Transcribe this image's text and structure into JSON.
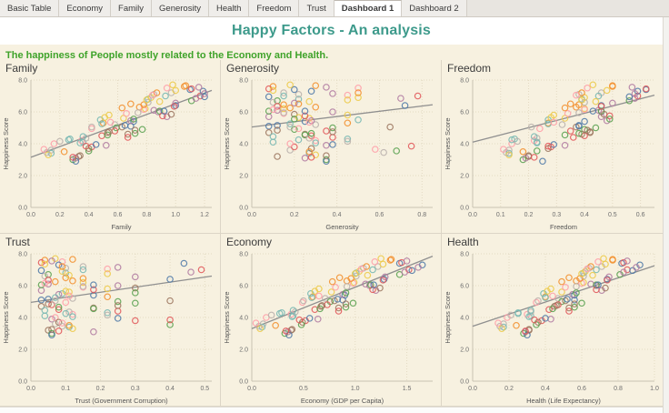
{
  "window": {
    "tabs": [
      {
        "label": "Basic Table",
        "active": false
      },
      {
        "label": "Economy",
        "active": false
      },
      {
        "label": "Family",
        "active": false
      },
      {
        "label": "Generosity",
        "active": false
      },
      {
        "label": "Health",
        "active": false
      },
      {
        "label": "Freedom",
        "active": false
      },
      {
        "label": "Trust",
        "active": false
      },
      {
        "label": "Dashboard 1",
        "active": true
      },
      {
        "label": "Dashboard 2",
        "active": false
      }
    ]
  },
  "header": {
    "title": "Happy Factors -  An analysis",
    "subtitle": "The happiness of People mostly related to the Economy and Health."
  },
  "colors": {
    "title": "#3d9a8b",
    "subtitle": "#3fa32a",
    "background": "#f7f1e0",
    "grid_line": "#e3dac2",
    "axis_line": "#c8c2b2",
    "tick_text": "#6e6e6e",
    "axis_label_text": "#555555",
    "trend_line": "#8f8f8f",
    "palette": [
      "#4e79a7",
      "#f28e2b",
      "#e15759",
      "#76b7b2",
      "#59a14f",
      "#edc948",
      "#b07aa1",
      "#ff9da7",
      "#9c755f",
      "#bab0ac"
    ]
  },
  "chart_data": {
    "type": "scatter",
    "ylabel": "Happiness Score",
    "ylim": [
      0,
      8
    ],
    "yticks": [
      0,
      2,
      4,
      6,
      8
    ],
    "grid": true,
    "marker": "open-circle",
    "fields": [
      "happiness_score",
      "family",
      "generosity",
      "freedom",
      "trust",
      "economy",
      "health",
      "color_index"
    ],
    "points": [
      [
        5.1,
        0.69,
        0.08,
        0.38,
        0.03,
        0.88,
        0.56,
        0
      ],
      [
        6.8,
        0.81,
        0.22,
        0.39,
        0.1,
        1.01,
        0.61,
        3
      ],
      [
        3.9,
        0.52,
        0.35,
        0.33,
        0.06,
        0.64,
        0.43,
        6
      ],
      [
        7.2,
        0.97,
        0.15,
        0.46,
        0.15,
        1.22,
        0.71,
        9
      ],
      [
        4.5,
        0.49,
        0.28,
        0.4,
        0.08,
        0.61,
        0.42,
        2
      ],
      [
        5.8,
        0.54,
        0.45,
        0.29,
        0.22,
        0.65,
        0.43,
        5
      ],
      [
        3.2,
        0.33,
        0.12,
        0.2,
        0.05,
        0.38,
        0.31,
        8
      ],
      [
        6.3,
        0.75,
        0.3,
        0.37,
        0.12,
        0.92,
        0.57,
        1
      ],
      [
        4.9,
        0.77,
        0.2,
        0.4,
        0.3,
        0.98,
        0.6,
        4
      ],
      [
        7.5,
        0.94,
        0.5,
        0.41,
        0.09,
        1.19,
        0.69,
        7
      ],
      [
        5.4,
        0.71,
        0.25,
        0.4,
        0.18,
        0.9,
        0.56,
        0
      ],
      [
        4.1,
        0.36,
        0.1,
        0.23,
        0.04,
        0.4,
        0.32,
        3
      ],
      [
        6.0,
        0.88,
        0.38,
        0.46,
        0.25,
        1.14,
        0.68,
        6
      ],
      [
        3.6,
        0.14,
        0.18,
        0.13,
        0.07,
        0.11,
        0.17,
        9
      ],
      [
        7.0,
        1.17,
        0.78,
        0.59,
        0.49,
        1.52,
        0.85,
        2
      ],
      [
        5.6,
        0.64,
        0.27,
        0.33,
        0.11,
        0.77,
        0.49,
        5
      ],
      [
        4.7,
        0.53,
        0.08,
        0.42,
        0.03,
        0.67,
        0.45,
        8
      ],
      [
        6.5,
        0.69,
        0.22,
        0.35,
        0.1,
        0.85,
        0.53,
        1
      ],
      [
        3.0,
        0.29,
        0.35,
        0.18,
        0.06,
        0.32,
        0.28,
        4
      ],
      [
        5.9,
        0.66,
        0.15,
        0.34,
        0.15,
        0.81,
        0.51,
        7
      ],
      [
        7.3,
        1.19,
        0.28,
        0.59,
        0.08,
        1.65,
        0.92,
        0
      ],
      [
        4.3,
        0.27,
        0.45,
        0.15,
        0.22,
        0.29,
        0.25,
        3
      ],
      [
        6.1,
        0.85,
        0.12,
        0.45,
        0.05,
        1.1,
        0.65,
        6
      ],
      [
        5.2,
        0.58,
        0.3,
        0.32,
        0.12,
        0.71,
        0.47,
        9
      ],
      [
        3.8,
        0.42,
        0.2,
        0.28,
        0.3,
        0.52,
        0.38,
        2
      ],
      [
        6.9,
        0.83,
        0.5,
        0.4,
        0.09,
        1.04,
        0.62,
        5
      ],
      [
        4.6,
        0.67,
        0.25,
        0.39,
        0.18,
        0.84,
        0.53,
        8
      ],
      [
        7.6,
        1.06,
        0.1,
        0.5,
        0.04,
        1.34,
        0.77,
        1
      ],
      [
        5.0,
        0.59,
        0.38,
        0.44,
        0.25,
        0.76,
        0.49,
        4
      ],
      [
        4.0,
        0.16,
        0.18,
        0.14,
        0.07,
        0.14,
        0.19,
        7
      ],
      [
        6.4,
        1.0,
        0.72,
        0.46,
        0.4,
        1.28,
        0.74,
        0
      ],
      [
        3.4,
        0.14,
        0.27,
        0.13,
        0.11,
        0.1,
        0.17,
        3
      ],
      [
        5.7,
        0.94,
        0.08,
        0.46,
        0.03,
        1.2,
        0.71,
        6
      ],
      [
        7.1,
        0.85,
        0.22,
        0.38,
        0.1,
        1.08,
        0.64,
        9
      ],
      [
        4.8,
        0.58,
        0.35,
        0.35,
        0.06,
        0.73,
        0.47,
        2
      ],
      [
        6.2,
        0.79,
        0.15,
        0.4,
        0.15,
        0.99,
        0.61,
        5
      ],
      [
        3.7,
        0.4,
        0.28,
        0.27,
        0.08,
        0.49,
        0.36,
        8
      ],
      [
        5.3,
        0.5,
        0.45,
        0.27,
        0.22,
        0.59,
        0.4,
        1
      ],
      [
        6.7,
        1.11,
        0.12,
        0.56,
        0.05,
        1.43,
        0.81,
        4
      ],
      [
        4.2,
        0.35,
        0.3,
        0.22,
        0.12,
        0.38,
        0.3,
        7
      ],
      [
        7.4,
        1.1,
        0.2,
        0.62,
        0.44,
        1.43,
        0.82,
        0
      ],
      [
        5.5,
        0.48,
        0.5,
        0.27,
        0.09,
        0.57,
        0.39,
        3
      ],
      [
        3.1,
        0.31,
        0.25,
        0.19,
        0.18,
        0.35,
        0.29,
        6
      ],
      [
        6.6,
        0.81,
        0.1,
        0.4,
        0.04,
        1.01,
        0.61,
        9
      ],
      [
        4.4,
        0.67,
        0.38,
        0.36,
        0.25,
        0.84,
        0.53,
        2
      ],
      [
        7.7,
        0.98,
        0.18,
        0.43,
        0.07,
        1.25,
        0.72,
        5
      ],
      [
        5.05,
        0.63,
        0.65,
        0.37,
        0.4,
        0.8,
        0.51,
        8
      ],
      [
        3.5,
        0.23,
        0.27,
        0.18,
        0.11,
        0.23,
        0.24,
        1
      ],
      [
        6.05,
        0.89,
        0.08,
        0.46,
        0.03,
        1.15,
        0.68,
        4
      ],
      [
        4.95,
        0.42,
        0.22,
        0.24,
        0.1,
        0.49,
        0.35,
        7
      ],
      [
        2.9,
        0.31,
        0.35,
        0.25,
        0.06,
        0.36,
        0.3,
        0
      ],
      [
        7.0,
        0.93,
        0.15,
        0.45,
        0.15,
        1.17,
        0.68,
        3
      ],
      [
        5.45,
        0.69,
        0.28,
        0.48,
        0.08,
        0.88,
        0.55,
        6
      ],
      [
        4.15,
        0.2,
        0.45,
        0.16,
        0.22,
        0.19,
        0.21,
        9
      ],
      [
        6.35,
        0.99,
        0.12,
        0.46,
        0.05,
        1.27,
        0.74,
        2
      ],
      [
        3.3,
        0.12,
        0.3,
        0.13,
        0.12,
        0.08,
        0.16,
        5
      ],
      [
        5.85,
        0.97,
        0.2,
        0.47,
        0.3,
        1.24,
        0.73,
        8
      ],
      [
        7.2,
        0.87,
        0.5,
        0.39,
        0.09,
        1.11,
        0.65,
        1
      ],
      [
        4.55,
        0.53,
        0.25,
        0.33,
        0.18,
        0.66,
        0.44,
        4
      ],
      [
        6.15,
        0.78,
        0.1,
        0.4,
        0.04,
        0.98,
        0.6,
        7
      ],
      [
        3.95,
        0.45,
        0.38,
        0.29,
        0.25,
        0.56,
        0.4,
        0
      ],
      [
        5.25,
        0.49,
        0.18,
        0.27,
        0.07,
        0.58,
        0.4,
        3
      ],
      [
        6.85,
        1.14,
        0.7,
        0.58,
        0.46,
        1.48,
        0.83,
        6
      ],
      [
        4.35,
        0.38,
        0.27,
        0.23,
        0.11,
        0.42,
        0.32,
        9
      ],
      [
        7.45,
        1.11,
        0.08,
        0.62,
        0.03,
        1.45,
        0.83,
        2
      ],
      [
        5.65,
        0.51,
        0.22,
        0.28,
        0.1,
        0.61,
        0.41,
        5
      ],
      [
        3.25,
        0.34,
        0.35,
        0.2,
        0.06,
        0.39,
        0.31,
        8
      ],
      [
        6.45,
        0.78,
        0.15,
        0.38,
        0.15,
        0.96,
        0.59,
        1
      ],
      [
        4.65,
        0.72,
        0.28,
        0.38,
        0.08,
        0.91,
        0.56,
        4
      ],
      [
        7.05,
        0.84,
        0.45,
        0.37,
        0.22,
        1.06,
        0.63,
        7
      ],
      [
        5.15,
        0.65,
        0.12,
        0.38,
        0.05,
        0.83,
        0.52,
        0
      ],
      [
        4.05,
        0.34,
        0.3,
        0.23,
        0.12,
        0.39,
        0.31,
        3
      ],
      [
        6.55,
        1.0,
        0.2,
        0.5,
        0.3,
        1.29,
        0.75,
        6
      ],
      [
        3.45,
        0.11,
        0.62,
        0.12,
        0.09,
        0.07,
        0.15,
        9
      ],
      [
        5.75,
        0.91,
        0.25,
        0.49,
        0.18,
        1.17,
        0.68,
        2
      ],
      [
        7.35,
        1.0,
        0.1,
        0.48,
        0.04,
        1.27,
        0.73,
        5
      ],
      [
        4.75,
        0.54,
        0.38,
        0.42,
        0.25,
        0.68,
        0.46,
        8
      ],
      [
        6.25,
        0.63,
        0.18,
        0.33,
        0.07,
        0.78,
        0.49,
        1
      ],
      [
        3.55,
        0.4,
        0.68,
        0.23,
        0.4,
        0.48,
        0.35,
        4
      ],
      [
        5.35,
        0.55,
        0.27,
        0.29,
        0.11,
        0.65,
        0.44,
        7
      ],
      [
        6.95,
        1.2,
        0.08,
        0.56,
        0.03,
        1.55,
        0.88,
        0
      ],
      [
        4.25,
        0.26,
        0.22,
        0.14,
        0.1,
        0.27,
        0.25,
        3
      ],
      [
        7.55,
        1.16,
        0.35,
        0.57,
        0.06,
        1.5,
        0.85,
        6
      ],
      [
        5.95,
        0.74,
        0.15,
        0.38,
        0.15,
        0.92,
        0.57,
        9
      ],
      [
        3.15,
        0.29,
        0.28,
        0.22,
        0.08,
        0.33,
        0.29,
        2
      ],
      [
        6.75,
        0.8,
        0.45,
        0.39,
        0.22,
        1.0,
        0.6,
        5
      ],
      [
        4.85,
        0.72,
        0.12,
        0.41,
        0.05,
        0.91,
        0.56,
        8
      ],
      [
        7.65,
        1.07,
        0.3,
        0.5,
        0.12,
        1.35,
        0.77,
        1
      ],
      [
        5.55,
        0.71,
        0.2,
        0.49,
        0.3,
        0.91,
        0.57,
        4
      ],
      [
        3.65,
        0.09,
        0.58,
        0.11,
        0.09,
        0.04,
        0.14,
        7
      ],
      [
        6.05,
        0.92,
        0.25,
        0.43,
        0.18,
        1.18,
        0.69,
        0
      ],
      [
        4.45,
        0.36,
        0.1,
        0.22,
        0.04,
        0.4,
        0.32,
        3
      ],
      [
        7.15,
        1.2,
        0.38,
        0.58,
        0.25,
        1.61,
        0.9,
        6
      ],
      [
        5.05,
        0.42,
        0.18,
        0.21,
        0.07,
        0.5,
        0.36,
        9
      ],
      [
        3.85,
        0.38,
        0.75,
        0.27,
        0.4,
        0.46,
        0.34,
        2
      ],
      [
        6.65,
        0.89,
        0.27,
        0.44,
        0.11,
        1.12,
        0.66,
        5
      ]
    ],
    "charts": [
      {
        "title": "Family",
        "xlabel": "Family",
        "xkey": 1,
        "xlim": [
          0,
          1.25
        ],
        "xticks": [
          0,
          0.2,
          0.4,
          0.6,
          0.8,
          1.0,
          1.2
        ],
        "trend": {
          "x1": 0,
          "y1": 3.15,
          "x2": 1.25,
          "y2": 7.35
        }
      },
      {
        "title": "Generosity",
        "xlabel": "Generosity",
        "xkey": 2,
        "xlim": [
          0,
          0.85
        ],
        "xticks": [
          0,
          0.2,
          0.4,
          0.6,
          0.8
        ],
        "trend": {
          "x1": 0,
          "y1": 5.05,
          "x2": 0.85,
          "y2": 6.45
        }
      },
      {
        "title": "Freedom",
        "xlabel": "Freedom",
        "xkey": 3,
        "xlim": [
          0,
          0.65
        ],
        "xticks": [
          0,
          0.1,
          0.2,
          0.3,
          0.4,
          0.5,
          0.6
        ],
        "trend": {
          "x1": 0,
          "y1": 4.1,
          "x2": 0.65,
          "y2": 7.05
        }
      },
      {
        "title": "Trust",
        "xlabel": "Trust (Government Corruption)",
        "xkey": 4,
        "xlim": [
          0,
          0.52
        ],
        "xticks": [
          0,
          0.1,
          0.2,
          0.3,
          0.4,
          0.5
        ],
        "trend": {
          "x1": 0,
          "y1": 4.95,
          "x2": 0.52,
          "y2": 6.6
        }
      },
      {
        "title": "Economy",
        "xlabel": "Economy (GDP per Capita)",
        "xkey": 5,
        "xlim": [
          0,
          1.75
        ],
        "xticks": [
          0,
          0.5,
          1.0,
          1.5
        ],
        "trend": {
          "x1": 0,
          "y1": 3.3,
          "x2": 1.75,
          "y2": 7.85
        }
      },
      {
        "title": "Health",
        "xlabel": "Health (Life Expectancy)",
        "xkey": 6,
        "xlim": [
          0,
          1.0
        ],
        "xticks": [
          0,
          0.2,
          0.4,
          0.6,
          0.8,
          1.0
        ],
        "trend": {
          "x1": 0,
          "y1": 3.45,
          "x2": 1.0,
          "y2": 7.25
        }
      }
    ]
  }
}
